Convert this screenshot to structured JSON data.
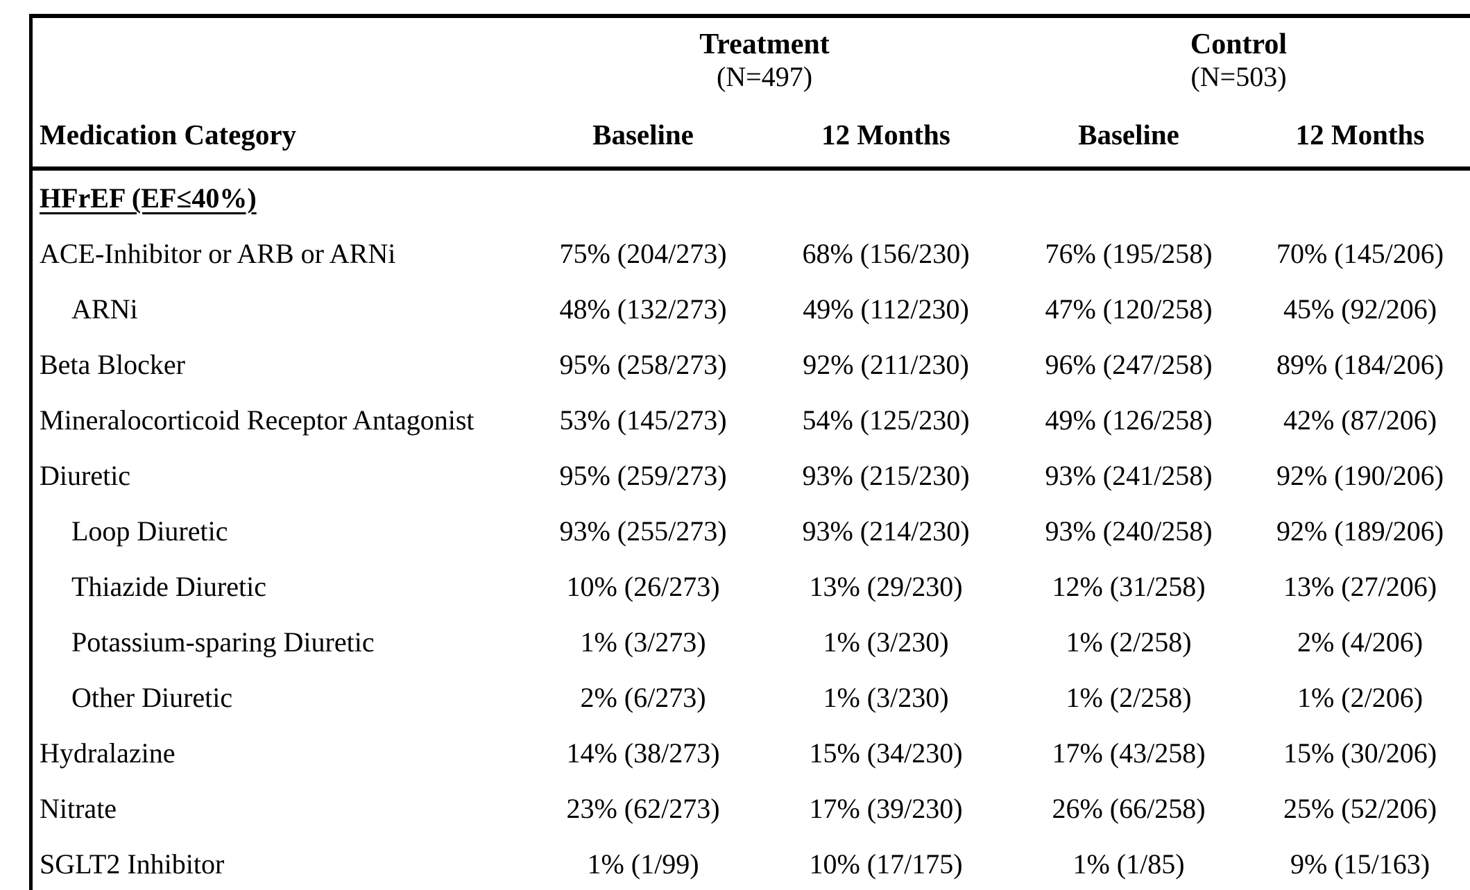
{
  "table": {
    "groups": [
      {
        "label": "Treatment",
        "n_label": "(N=497)"
      },
      {
        "label": "Control",
        "n_label": "(N=503)"
      }
    ],
    "category_header": "Medication Category",
    "sub_headers": [
      "Baseline",
      "12 Months",
      "Baseline",
      "12 Months"
    ],
    "section_header": "HFrEF (EF≤40%)",
    "rows": [
      {
        "label": "ACE-Inhibitor or ARB or ARNi",
        "indent": false,
        "values": [
          "75% (204/273)",
          "68% (156/230)",
          "76% (195/258)",
          "70% (145/206)"
        ]
      },
      {
        "label": "ARNi",
        "indent": true,
        "values": [
          "48% (132/273)",
          "49% (112/230)",
          "47% (120/258)",
          "45% (92/206)"
        ]
      },
      {
        "label": "Beta Blocker",
        "indent": false,
        "values": [
          "95% (258/273)",
          "92% (211/230)",
          "96% (247/258)",
          "89% (184/206)"
        ]
      },
      {
        "label": "Mineralocorticoid Receptor Antagonist",
        "indent": false,
        "values": [
          "53% (145/273)",
          "54% (125/230)",
          "49% (126/258)",
          "42% (87/206)"
        ]
      },
      {
        "label": "Diuretic",
        "indent": false,
        "values": [
          "95% (259/273)",
          "93% (215/230)",
          "93% (241/258)",
          "92% (190/206)"
        ]
      },
      {
        "label": "Loop Diuretic",
        "indent": true,
        "values": [
          "93% (255/273)",
          "93% (214/230)",
          "93% (240/258)",
          "92% (189/206)"
        ]
      },
      {
        "label": "Thiazide Diuretic",
        "indent": true,
        "values": [
          "10% (26/273)",
          "13% (29/230)",
          "12% (31/258)",
          "13% (27/206)"
        ]
      },
      {
        "label": "Potassium-sparing Diuretic",
        "indent": true,
        "values": [
          "1% (3/273)",
          "1% (3/230)",
          "1% (2/258)",
          "2% (4/206)"
        ]
      },
      {
        "label": "Other Diuretic",
        "indent": true,
        "values": [
          "2% (6/273)",
          "1% (3/230)",
          "1% (2/258)",
          "1% (2/206)"
        ]
      },
      {
        "label": "Hydralazine",
        "indent": false,
        "values": [
          "14% (38/273)",
          "15% (34/230)",
          "17% (43/258)",
          "15% (30/206)"
        ]
      },
      {
        "label": "Nitrate",
        "indent": false,
        "values": [
          "23% (62/273)",
          "17% (39/230)",
          "26% (66/258)",
          "25% (52/206)"
        ]
      },
      {
        "label": "SGLT2 Inhibitor",
        "indent": false,
        "values": [
          "1% (1/99)",
          "10% (17/175)",
          "1% (1/85)",
          "9% (15/163)"
        ]
      }
    ]
  }
}
